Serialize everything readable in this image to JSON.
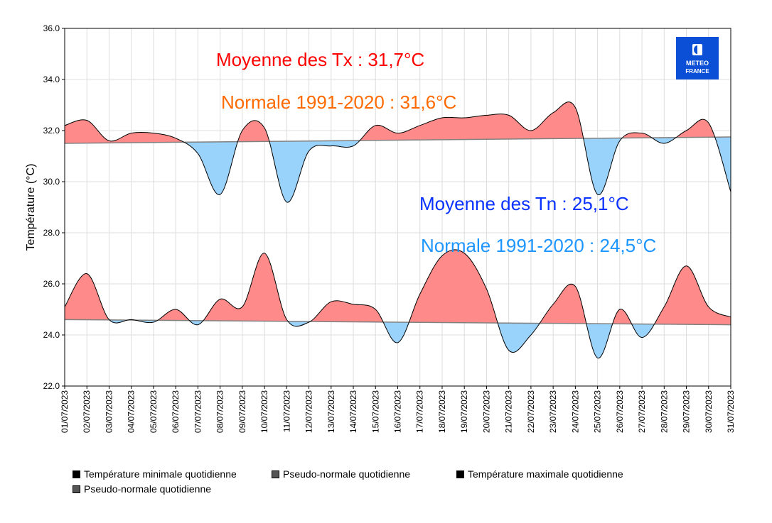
{
  "chart_data": {
    "type": "area",
    "ylabel": "Température (°C)",
    "ylim": [
      22,
      36
    ],
    "yticks": [
      "22.0",
      "24.0",
      "26.0",
      "28.0",
      "30.0",
      "32.0",
      "34.0",
      "36.0"
    ],
    "grid": true,
    "categories": [
      "01/07/2023",
      "02/07/2023",
      "03/07/2023",
      "04/07/2023",
      "05/07/2023",
      "06/07/2023",
      "07/07/2023",
      "08/07/2023",
      "09/07/2023",
      "10/07/2023",
      "11/07/2023",
      "12/07/2023",
      "13/07/2023",
      "14/07/2023",
      "15/07/2023",
      "16/07/2023",
      "17/07/2023",
      "18/07/2023",
      "19/07/2023",
      "20/07/2023",
      "21/07/2023",
      "22/07/2023",
      "23/07/2023",
      "24/07/2023",
      "25/07/2023",
      "26/07/2023",
      "27/07/2023",
      "28/07/2023",
      "29/07/2023",
      "30/07/2023",
      "31/07/2023"
    ],
    "series": [
      {
        "name": "Température minimale quotidienne",
        "values": [
          25.1,
          26.4,
          24.6,
          24.6,
          24.5,
          25.0,
          24.4,
          25.4,
          25.1,
          27.2,
          24.6,
          24.5,
          25.3,
          25.2,
          25.0,
          23.7,
          25.6,
          27.1,
          27.2,
          25.8,
          23.4,
          24.0,
          25.2,
          25.9,
          23.1,
          25.0,
          23.9,
          25.1,
          26.7,
          25.1,
          24.7
        ]
      },
      {
        "name": "Pseudo-normale quotidienne",
        "values_start_end": [
          24.6,
          24.4
        ]
      },
      {
        "name": "Température maximale quotidienne",
        "values": [
          32.2,
          32.4,
          31.6,
          31.9,
          31.9,
          31.7,
          31.1,
          29.5,
          32.0,
          32.1,
          29.2,
          31.2,
          31.4,
          31.4,
          32.2,
          31.9,
          32.2,
          32.5,
          32.5,
          32.6,
          32.6,
          32.0,
          32.7,
          32.9,
          29.5,
          31.6,
          31.9,
          31.5,
          32.0,
          32.3,
          29.6
        ]
      },
      {
        "name": "Pseudo-normale quotidienne",
        "values_start_end": [
          31.5,
          31.75
        ]
      }
    ],
    "annotations": {
      "tx_mean": "Moyenne des Tx : 31,7°C",
      "tx_normal": "Normale 1991-2020 : 31,6°C",
      "tn_mean": "Moyenne des Tn : 25,1°C",
      "tn_normal": "Normale 1991-2020 : 24,5°C"
    },
    "legend_placement": "bottom",
    "colors": {
      "above": "#ff8a8a",
      "below": "#99d2fa",
      "tx_mean": "#ff0000",
      "tx_normal": "#ff6a00",
      "tn_mean": "#0a32ff",
      "tn_normal": "#1e96ff",
      "normal_line": "#808080"
    }
  },
  "logo": {
    "line1": "METEO",
    "line2": "FRANCE",
    "color": "#0a4fd6"
  }
}
